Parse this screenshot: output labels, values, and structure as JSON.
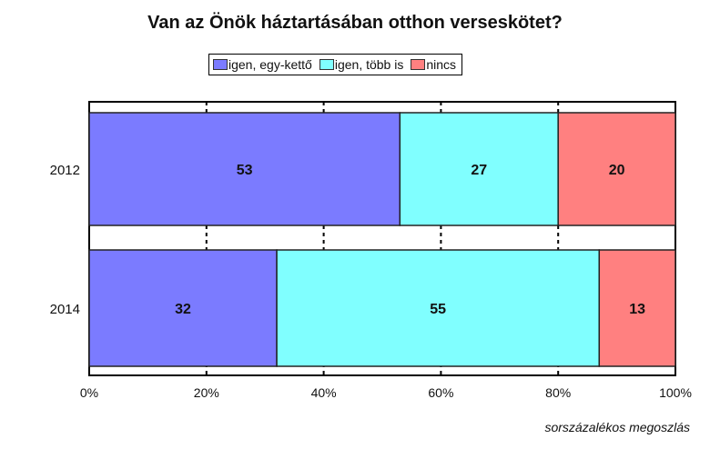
{
  "chart_data": {
    "type": "bar",
    "orientation": "horizontal",
    "stacked": true,
    "title": "Van az Önök háztartásában otthon verseskötet?",
    "categories": [
      "2012",
      "2014"
    ],
    "series": [
      {
        "name": "igen, egy-kettő",
        "values": [
          53,
          32
        ],
        "color": "#7b7bff"
      },
      {
        "name": "igen, több is",
        "values": [
          27,
          55
        ],
        "color": "#80ffff"
      },
      {
        "name": "nincs",
        "values": [
          20,
          13
        ],
        "color": "#ff8080"
      }
    ],
    "xlim": [
      0,
      100
    ],
    "xticks": [
      "0%",
      "20%",
      "40%",
      "60%",
      "80%",
      "100%"
    ],
    "xlabel": "sorszázalékos megoszlás",
    "grid": "dashed vertical",
    "legend_position": "top"
  }
}
